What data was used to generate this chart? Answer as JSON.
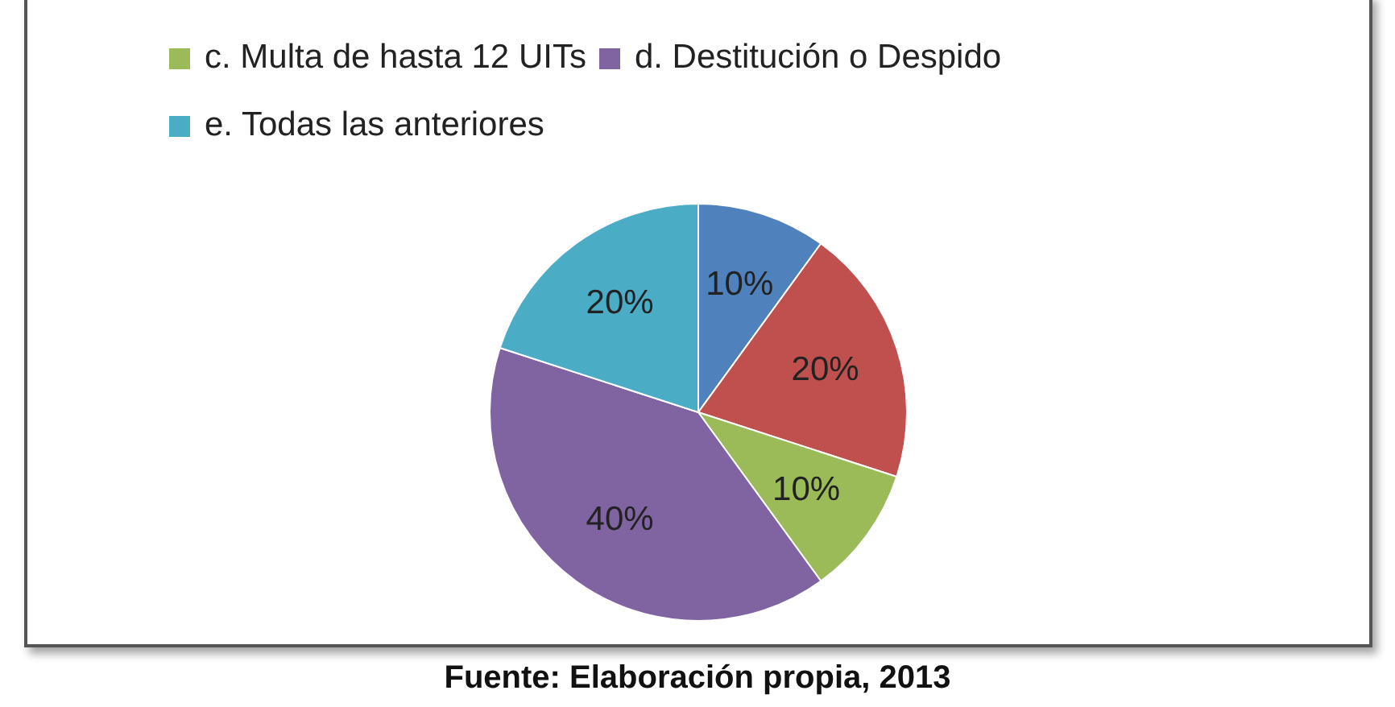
{
  "chart_data": {
    "type": "pie",
    "categories": [
      null,
      null,
      "c. Multa de hasta 12 UITs",
      "d. Destitución o Despido",
      "e. Todas las anteriores"
    ],
    "values": [
      10,
      20,
      10,
      40,
      20
    ],
    "colors": [
      "#4f81bd",
      "#c0504d",
      "#9bbb59",
      "#8064a2",
      "#4bacc6"
    ],
    "value_labels": [
      "10%",
      "20%",
      "10%",
      "40%",
      "20%"
    ],
    "legend": "top",
    "annotations": [
      "Fuente: Elaboración propia, 2013"
    ]
  }
}
